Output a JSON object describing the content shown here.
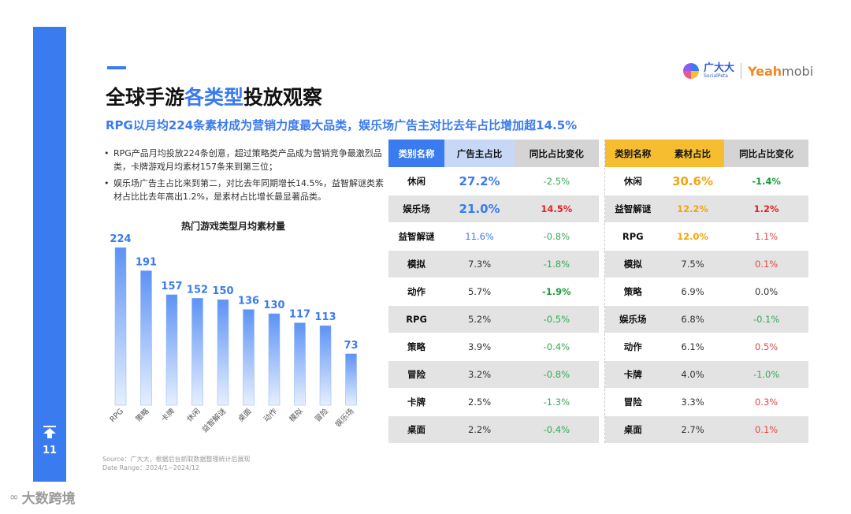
{
  "page": {
    "number": "11",
    "title_pre": "全球手游",
    "title_hl": "各类型",
    "title_post": "投放观察",
    "subtitle": "RPG以月均224条素材成为营销力度最大品类，娱乐场广告主对比去年占比增加超14.5%"
  },
  "logos": {
    "guangdada_cn": "广大大",
    "guangdada_en": "SocialPeta",
    "yeah": "Yeah",
    "mobi": "mobi"
  },
  "bullets": [
    "RPG产品月均投放224条创意，超过策略类产品成为营销竞争最激烈品类，卡牌游戏月均素材157条来到第三位；",
    "娱乐场广告主占比来到第二，对比去年同期增长14.5%，益智解谜类素材占比比去年高出1.2%，是素材占比增长最显著品类。"
  ],
  "chart_data": {
    "type": "bar",
    "title": "热门游戏类型月均素材量",
    "categories": [
      "RPG",
      "策略",
      "卡牌",
      "休闲",
      "益智解谜",
      "桌面",
      "动作",
      "模拟",
      "冒险",
      "娱乐场"
    ],
    "values": [
      224,
      191,
      157,
      152,
      150,
      136,
      130,
      117,
      113,
      73
    ],
    "ylim": [
      0,
      224
    ],
    "grid": false,
    "bar_color_top": "#5d93f4",
    "bar_color_bottom": "#e6efff",
    "label_color": "#3a7bef"
  },
  "table": {
    "headers": [
      "类别名称",
      "广告主占比",
      "同比占比变化",
      "类别名称",
      "素材占比",
      "同比占比变化"
    ],
    "rows": [
      [
        "休闲",
        "27.2%",
        "-2.5%",
        "休闲",
        "30.6%",
        "-1.4%"
      ],
      [
        "娱乐场",
        "21.0%",
        "14.5%",
        "益智解谜",
        "12.2%",
        "1.2%"
      ],
      [
        "益智解谜",
        "11.6%",
        "-0.8%",
        "RPG",
        "12.0%",
        "1.1%"
      ],
      [
        "模拟",
        "7.3%",
        "-1.8%",
        "模拟",
        "7.5%",
        "0.1%"
      ],
      [
        "动作",
        "5.7%",
        "-1.9%",
        "策略",
        "6.9%",
        "0.0%"
      ],
      [
        "RPG",
        "5.2%",
        "-0.5%",
        "娱乐场",
        "6.8%",
        "-0.1%"
      ],
      [
        "策略",
        "3.9%",
        "-0.4%",
        "动作",
        "6.1%",
        "0.5%"
      ],
      [
        "冒险",
        "3.2%",
        "-0.8%",
        "卡牌",
        "4.0%",
        "-1.0%"
      ],
      [
        "卡牌",
        "2.5%",
        "-1.3%",
        "冒险",
        "3.3%",
        "0.3%"
      ],
      [
        "桌面",
        "2.2%",
        "-0.4%",
        "桌面",
        "2.7%",
        "0.1%"
      ]
    ],
    "colors": {
      "blue_header": "#3a7bef",
      "yellow_header": "#f5bd2f",
      "positive": "#e52222",
      "negative": "#1e9a3a"
    }
  },
  "footer": {
    "source": "Source：广大大，根据后台抓取数据整理统计后展现",
    "date_range": "Date Range：2024/1~2024/12"
  },
  "watermark": {
    "text": "大数跨境"
  }
}
